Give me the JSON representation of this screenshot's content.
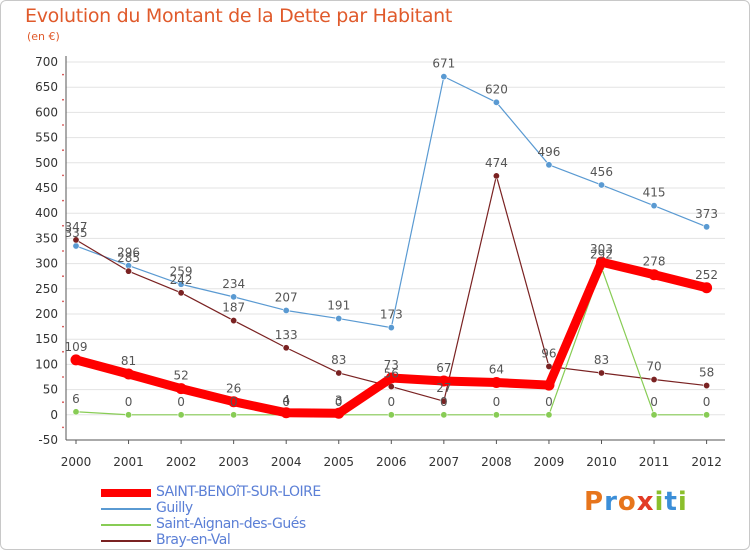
{
  "title": "Evolution du Montant de la Dette par Habitant",
  "subtitle": "(en €)",
  "logo": {
    "text": "Proxiti",
    "letter_colors": [
      "#e7751c",
      "#3b8ed8",
      "#e7751c",
      "#e23a25",
      "#8bbf2c",
      "#3b8ed8",
      "#8bbf2c"
    ]
  },
  "colors": {
    "axis": "#555555",
    "grid": "#e3e3e3",
    "tick_text": "#333333",
    "value_text": "#555555",
    "title": "#e05a2b"
  },
  "chart_data": {
    "type": "line",
    "title": "Evolution du Montant de la Dette par Habitant",
    "subtitle": "(en €)",
    "xlabel": "",
    "ylabel": "",
    "categories": [
      "2000",
      "2001",
      "2002",
      "2003",
      "2004",
      "2005",
      "2006",
      "2007",
      "2008",
      "2009",
      "2010",
      "2011",
      "2012"
    ],
    "ylim": [
      -50,
      700
    ],
    "yticks": [
      -50,
      0,
      50,
      100,
      150,
      200,
      250,
      300,
      350,
      400,
      450,
      500,
      550,
      600,
      650,
      700
    ],
    "grid": "horizontal",
    "legend_position": "bottom-left",
    "series": [
      {
        "name": "SAINT-BENOîT-SUR-LOIRE",
        "color": "#ff0000",
        "style": "thick",
        "values": [
          109,
          81,
          52,
          26,
          4,
          3,
          73,
          67,
          64,
          59,
          303,
          278,
          252
        ],
        "labels": [
          "109",
          "81",
          "52",
          "26",
          "4",
          "3",
          "73",
          "67",
          "64",
          "",
          "303",
          "278",
          "252"
        ]
      },
      {
        "name": "Guilly",
        "color": "#5a9ad2",
        "style": "thin",
        "values": [
          335,
          296,
          259,
          234,
          207,
          191,
          173,
          671,
          620,
          496,
          456,
          415,
          373
        ],
        "labels": [
          "335",
          "296",
          "259",
          "234",
          "207",
          "191",
          "173",
          "671",
          "620",
          "496",
          "456",
          "415",
          "373"
        ]
      },
      {
        "name": "Saint-Aignan-des-Gués",
        "color": "#88cc55",
        "style": "thin",
        "values": [
          6,
          0,
          0,
          0,
          0,
          0,
          0,
          0,
          0,
          0,
          292,
          0,
          0
        ],
        "labels": [
          "6",
          "0",
          "0",
          "0",
          "0",
          "0",
          "0",
          "0",
          "0",
          "0",
          "292",
          "0",
          "0"
        ]
      },
      {
        "name": "Bray-en-Val",
        "color": "#7a2222",
        "style": "thin",
        "values": [
          347,
          285,
          242,
          187,
          133,
          83,
          56,
          27,
          474,
          96,
          83,
          70,
          58
        ],
        "labels": [
          "347",
          "285",
          "242",
          "187",
          "133",
          "83",
          "56",
          "27",
          "474",
          "96",
          "83",
          "70",
          "58"
        ]
      }
    ]
  }
}
